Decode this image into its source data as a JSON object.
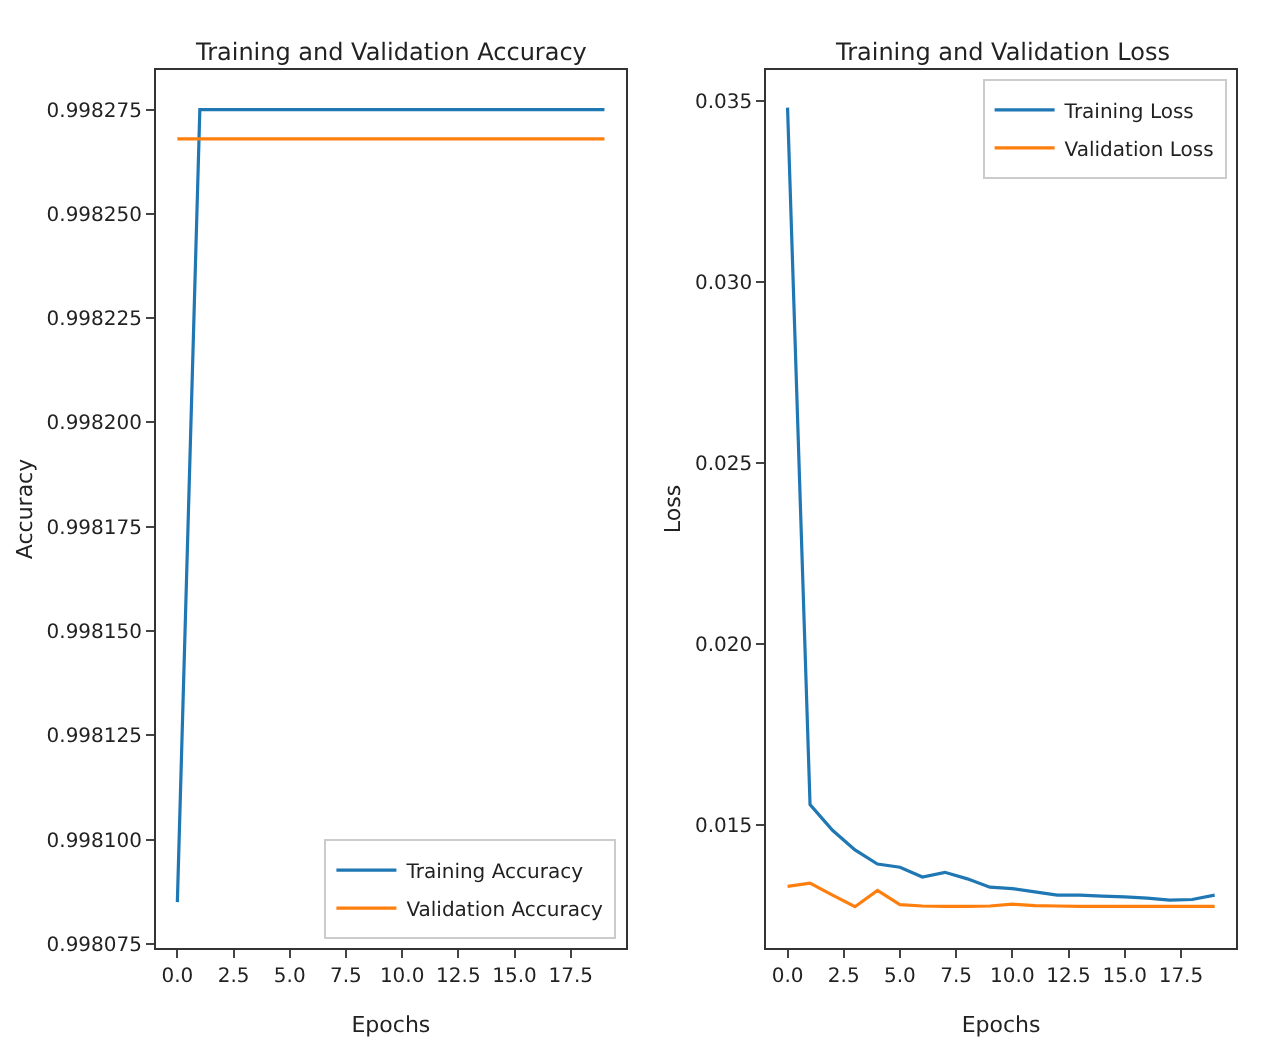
{
  "chart_data": [
    {
      "type": "line",
      "title": "Training and Validation Accuracy",
      "xlabel": "Epochs",
      "ylabel": "Accuracy",
      "x": [
        0,
        1,
        2,
        3,
        4,
        5,
        6,
        7,
        8,
        9,
        10,
        11,
        12,
        13,
        14,
        15,
        16,
        17,
        18,
        19
      ],
      "series": [
        {
          "name": "Training Accuracy",
          "color": "#1f77b4",
          "values": [
            0.998085,
            0.998275,
            0.998275,
            0.998275,
            0.998275,
            0.998275,
            0.998275,
            0.998275,
            0.998275,
            0.998275,
            0.998275,
            0.998275,
            0.998275,
            0.998275,
            0.998275,
            0.998275,
            0.998275,
            0.998275,
            0.998275,
            0.998275
          ]
        },
        {
          "name": "Validation Accuracy",
          "color": "#ff7f0e",
          "values": [
            0.998268,
            0.998268,
            0.998268,
            0.998268,
            0.998268,
            0.998268,
            0.998268,
            0.998268,
            0.998268,
            0.998268,
            0.998268,
            0.998268,
            0.998268,
            0.998268,
            0.998268,
            0.998268,
            0.998268,
            0.998268,
            0.998268,
            0.998268
          ]
        }
      ],
      "xlim": [
        -0.95,
        19.95
      ],
      "xticks": [
        {
          "value": 0,
          "label": "0.0"
        },
        2.5,
        {
          "value": 5,
          "label": "5.0"
        },
        7.5,
        {
          "value": 10,
          "label": "10.0"
        },
        12.5,
        {
          "value": 15,
          "label": "15.0"
        },
        17.5
      ],
      "ylim": [
        0.998074,
        0.9982845
      ],
      "yticks": [
        0.998075,
        {
          "value": 0.9981,
          "label": "0.998100"
        },
        0.998125,
        {
          "value": 0.99815,
          "label": "0.998150"
        },
        0.998175,
        {
          "value": 0.9982,
          "label": "0.998200"
        },
        0.998225,
        {
          "value": 0.99825,
          "label": "0.998250"
        },
        0.998275
      ],
      "legend": "bottom right",
      "line_style": "solid",
      "marker": "none"
    },
    {
      "type": "line",
      "title": "Training and Validation Loss",
      "xlabel": "Epochs",
      "ylabel": "Loss",
      "x": [
        0,
        1,
        2,
        3,
        4,
        5,
        6,
        7,
        8,
        9,
        10,
        11,
        12,
        13,
        14,
        15,
        16,
        17,
        18,
        19
      ],
      "series": [
        {
          "name": "Training Loss",
          "color": "#1f77b4",
          "values": [
            0.03482,
            0.01557,
            0.01486,
            0.01432,
            0.01393,
            0.01384,
            0.01357,
            0.0137,
            0.01352,
            0.01329,
            0.01325,
            0.01316,
            0.01307,
            0.01307,
            0.01304,
            0.01302,
            0.01299,
            0.01293,
            0.01295,
            0.01307
          ]
        },
        {
          "name": "Validation Loss",
          "color": "#ff7f0e",
          "values": [
            0.01331,
            0.0134,
            0.01307,
            0.01275,
            0.0132,
            0.01281,
            0.01277,
            0.01276,
            0.01276,
            0.01277,
            0.01282,
            0.01278,
            0.01277,
            0.01276,
            0.01276,
            0.01276,
            0.01276,
            0.01276,
            0.01276,
            0.01276
          ]
        }
      ],
      "xlim": [
        -0.95,
        19.95
      ],
      "xticks": [
        {
          "value": 0,
          "label": "0.0"
        },
        2.5,
        {
          "value": 5,
          "label": "5.0"
        },
        7.5,
        {
          "value": 10,
          "label": "10.0"
        },
        12.5,
        {
          "value": 15,
          "label": "15.0"
        },
        17.5
      ],
      "ylim": [
        0.01161,
        0.03586
      ],
      "yticks": [
        0.015,
        {
          "value": 0.02,
          "label": "0.020"
        },
        0.025,
        {
          "value": 0.03,
          "label": "0.030"
        },
        0.035
      ],
      "legend": "top right",
      "line_style": "solid",
      "marker": "none"
    }
  ]
}
